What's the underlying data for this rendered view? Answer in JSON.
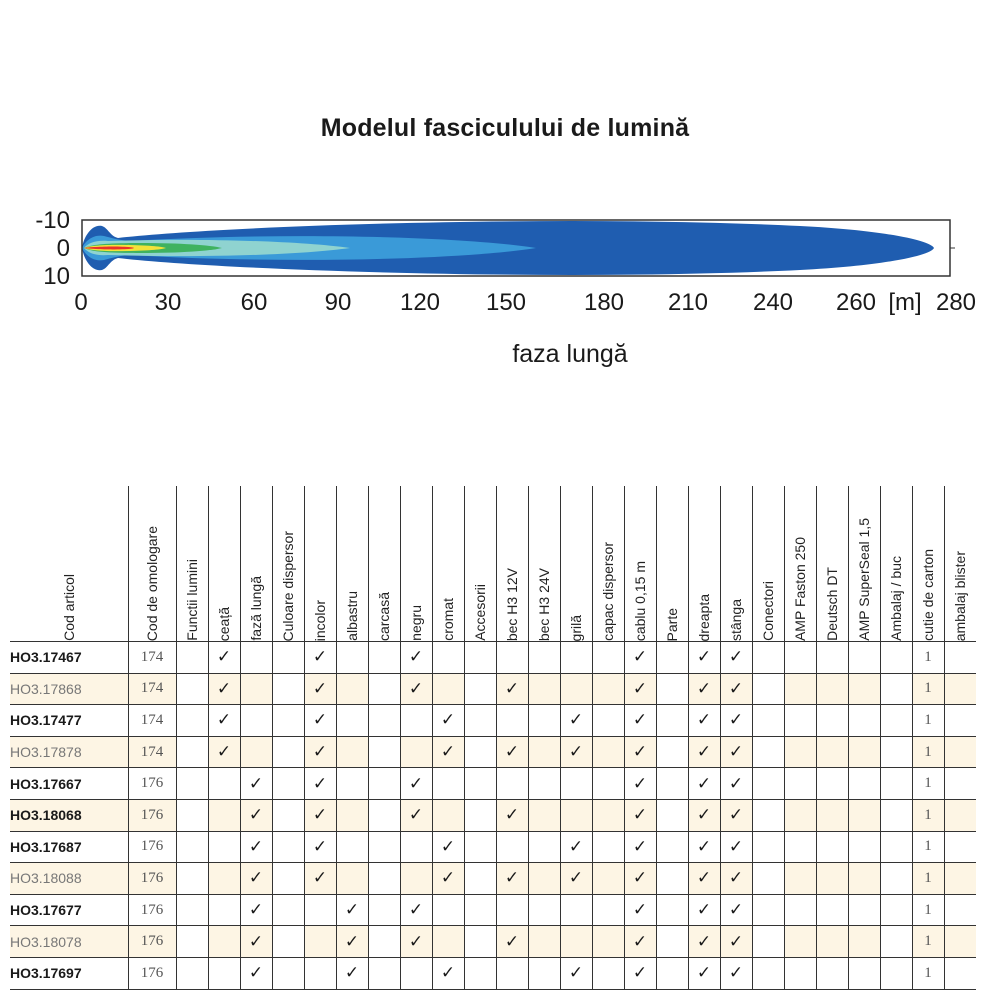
{
  "chart": {
    "title": "Modelul fasciculului de lumină",
    "xlabel": "faza lungă",
    "xunit": "[m]",
    "x_ticks": [
      "0",
      "30",
      "60",
      "90",
      "120",
      "150",
      "180",
      "210",
      "240",
      "260",
      "280"
    ],
    "y_ticks": [
      "-10",
      "0",
      "10"
    ],
    "colors": {
      "zone1": "#1f5db0",
      "zone2": "#3a9ad8",
      "zone3": "#8fd3d0",
      "zone4": "#3fb260",
      "zone5": "#f2e33a",
      "zone6": "#e8332a"
    }
  },
  "table": {
    "headers": [
      "Cod articol",
      "Cod de omologare",
      "Functii lumini",
      "ceață",
      "fază lungă",
      "Culoare dispersor",
      "incolor",
      "albastru",
      "carcasă",
      "negru",
      "cromat",
      "Accesorii",
      "bec H3 12V",
      "bec H3 24V",
      "grilă",
      "capac dispersor",
      "cablu 0,15 m",
      "Parte",
      "dreapta",
      "stânga",
      "Conectori",
      "AMP Faston 250",
      "Deutsch DT",
      "AMP SuperSeal 1,5",
      "Ambalaj / buc",
      "cutie de carton",
      "ambalaj blister"
    ],
    "check_symbol": "✓",
    "rows": [
      {
        "code": "HO3.17467",
        "bold": true,
        "homologation": "174",
        "ceata": true,
        "faza": false,
        "incolor": true,
        "albastru": false,
        "negru": true,
        "cromat": false,
        "bec12": false,
        "grila": false,
        "cablu": true,
        "dreapta": true,
        "stanga": true,
        "cutie": "1"
      },
      {
        "code": "HO3.17868",
        "bold": false,
        "homologation": "174",
        "ceata": true,
        "faza": false,
        "incolor": true,
        "albastru": false,
        "negru": true,
        "cromat": false,
        "bec12": true,
        "grila": false,
        "cablu": true,
        "dreapta": true,
        "stanga": true,
        "cutie": "1"
      },
      {
        "code": "HO3.17477",
        "bold": true,
        "homologation": "174",
        "ceata": true,
        "faza": false,
        "incolor": true,
        "albastru": false,
        "negru": false,
        "cromat": true,
        "bec12": false,
        "grila": true,
        "cablu": true,
        "dreapta": true,
        "stanga": true,
        "cutie": "1"
      },
      {
        "code": "HO3.17878",
        "bold": false,
        "homologation": "174",
        "ceata": true,
        "faza": false,
        "incolor": true,
        "albastru": false,
        "negru": false,
        "cromat": true,
        "bec12": true,
        "grila": true,
        "cablu": true,
        "dreapta": true,
        "stanga": true,
        "cutie": "1"
      },
      {
        "code": "HO3.17667",
        "bold": true,
        "homologation": "176",
        "ceata": false,
        "faza": true,
        "incolor": true,
        "albastru": false,
        "negru": true,
        "cromat": false,
        "bec12": false,
        "grila": false,
        "cablu": true,
        "dreapta": true,
        "stanga": true,
        "cutie": "1"
      },
      {
        "code": "HO3.18068",
        "bold": true,
        "homologation": "176",
        "ceata": false,
        "faza": true,
        "incolor": true,
        "albastru": false,
        "negru": true,
        "cromat": false,
        "bec12": true,
        "grila": false,
        "cablu": true,
        "dreapta": true,
        "stanga": true,
        "cutie": "1"
      },
      {
        "code": "HO3.17687",
        "bold": true,
        "homologation": "176",
        "ceata": false,
        "faza": true,
        "incolor": true,
        "albastru": false,
        "negru": false,
        "cromat": true,
        "bec12": false,
        "grila": true,
        "cablu": true,
        "dreapta": true,
        "stanga": true,
        "cutie": "1"
      },
      {
        "code": "HO3.18088",
        "bold": false,
        "homologation": "176",
        "ceata": false,
        "faza": true,
        "incolor": true,
        "albastru": false,
        "negru": false,
        "cromat": true,
        "bec12": true,
        "grila": true,
        "cablu": true,
        "dreapta": true,
        "stanga": true,
        "cutie": "1"
      },
      {
        "code": "HO3.17677",
        "bold": true,
        "homologation": "176",
        "ceata": false,
        "faza": true,
        "incolor": false,
        "albastru": true,
        "negru": true,
        "cromat": false,
        "bec12": false,
        "grila": false,
        "cablu": true,
        "dreapta": true,
        "stanga": true,
        "cutie": "1"
      },
      {
        "code": "HO3.18078",
        "bold": false,
        "homologation": "176",
        "ceata": false,
        "faza": true,
        "incolor": false,
        "albastru": true,
        "negru": true,
        "cromat": false,
        "bec12": true,
        "grila": false,
        "cablu": true,
        "dreapta": true,
        "stanga": true,
        "cutie": "1"
      },
      {
        "code": "HO3.17697",
        "bold": true,
        "homologation": "176",
        "ceata": false,
        "faza": true,
        "incolor": false,
        "albastru": true,
        "negru": false,
        "cromat": true,
        "bec12": false,
        "grila": true,
        "cablu": true,
        "dreapta": true,
        "stanga": true,
        "cutie": "1"
      }
    ]
  }
}
